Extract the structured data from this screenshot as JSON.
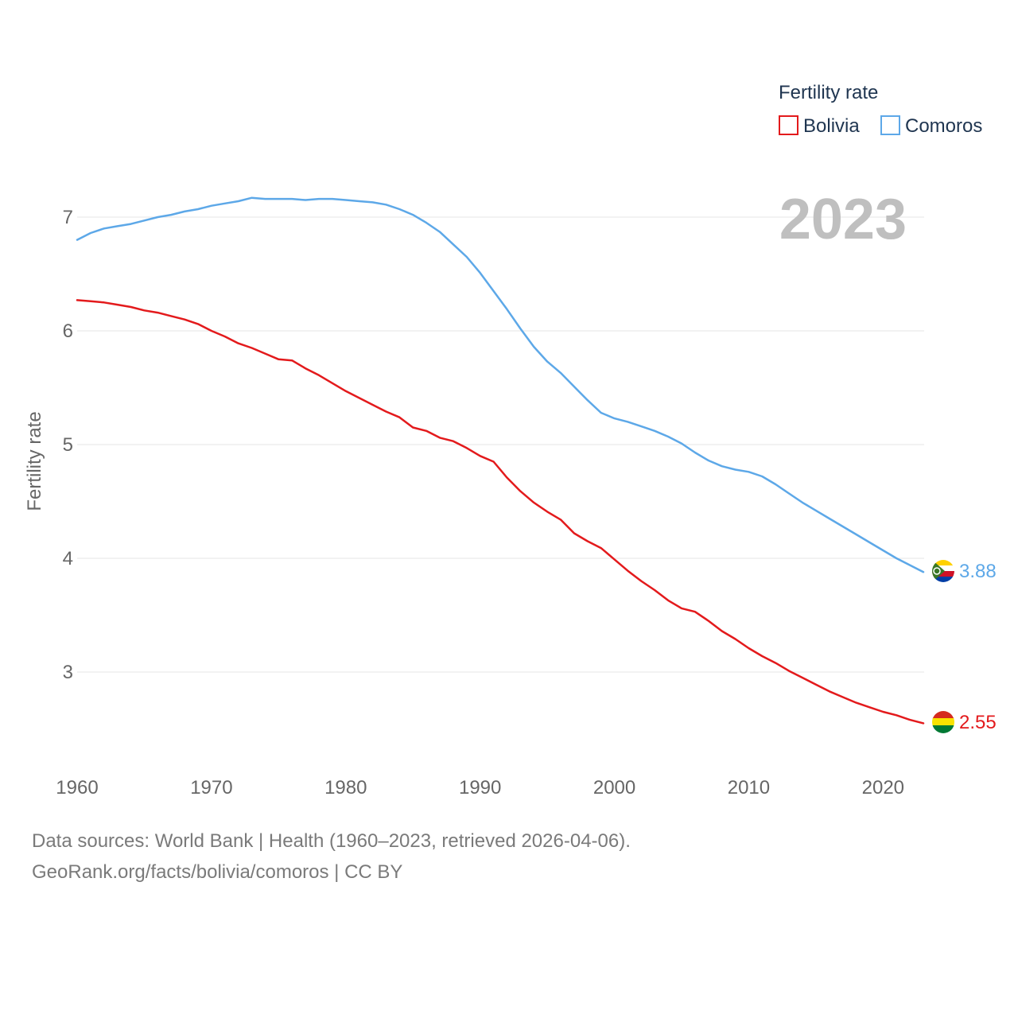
{
  "chart_data": {
    "type": "line",
    "title": "",
    "xlabel": "",
    "ylabel": "Fertility rate",
    "legend_title": "Fertility rate",
    "legend_position": "top-right",
    "year_label": "2023",
    "xlim": [
      1960,
      2023
    ],
    "ylim": [
      2.4,
      7.3
    ],
    "x_ticks": [
      1960,
      1970,
      1980,
      1990,
      2000,
      2010,
      2020
    ],
    "y_ticks": [
      3,
      4,
      5,
      6,
      7
    ],
    "x": [
      1960,
      1961,
      1962,
      1963,
      1964,
      1965,
      1966,
      1967,
      1968,
      1969,
      1970,
      1971,
      1972,
      1973,
      1974,
      1975,
      1976,
      1977,
      1978,
      1979,
      1980,
      1981,
      1982,
      1983,
      1984,
      1985,
      1986,
      1987,
      1988,
      1989,
      1990,
      1991,
      1992,
      1993,
      1994,
      1995,
      1996,
      1997,
      1998,
      1999,
      2000,
      2001,
      2002,
      2003,
      2004,
      2005,
      2006,
      2007,
      2008,
      2009,
      2010,
      2011,
      2012,
      2013,
      2014,
      2015,
      2016,
      2017,
      2018,
      2019,
      2020,
      2021,
      2022,
      2023
    ],
    "series": [
      {
        "name": "Bolivia",
        "color": "#e31a1c",
        "end_label": "2.55",
        "values": [
          6.27,
          6.26,
          6.25,
          6.23,
          6.21,
          6.18,
          6.16,
          6.13,
          6.1,
          6.06,
          6.0,
          5.95,
          5.89,
          5.85,
          5.8,
          5.75,
          5.74,
          5.67,
          5.61,
          5.54,
          5.47,
          5.41,
          5.35,
          5.29,
          5.24,
          5.15,
          5.12,
          5.06,
          5.03,
          4.97,
          4.9,
          4.85,
          4.71,
          4.59,
          4.49,
          4.41,
          4.34,
          4.22,
          4.15,
          4.09,
          3.99,
          3.89,
          3.8,
          3.72,
          3.63,
          3.56,
          3.53,
          3.45,
          3.36,
          3.29,
          3.21,
          3.14,
          3.08,
          3.01,
          2.95,
          2.89,
          2.83,
          2.78,
          2.73,
          2.69,
          2.65,
          2.62,
          2.58,
          2.55
        ]
      },
      {
        "name": "Comoros",
        "color": "#5da8e8",
        "end_label": "3.88",
        "values": [
          6.8,
          6.86,
          6.9,
          6.92,
          6.94,
          6.97,
          7.0,
          7.02,
          7.05,
          7.07,
          7.1,
          7.12,
          7.14,
          7.17,
          7.16,
          7.16,
          7.16,
          7.15,
          7.16,
          7.16,
          7.15,
          7.14,
          7.13,
          7.11,
          7.07,
          7.02,
          6.95,
          6.87,
          6.76,
          6.65,
          6.51,
          6.35,
          6.19,
          6.02,
          5.86,
          5.73,
          5.63,
          5.51,
          5.39,
          5.28,
          5.23,
          5.2,
          5.16,
          5.12,
          5.07,
          5.01,
          4.93,
          4.86,
          4.81,
          4.78,
          4.76,
          4.72,
          4.65,
          4.57,
          4.49,
          4.42,
          4.35,
          4.28,
          4.21,
          4.14,
          4.07,
          4.0,
          3.94,
          3.88
        ]
      }
    ]
  },
  "footer": {
    "source": "Data sources: World Bank | Health (1960–2023, retrieved 2026-04-06).",
    "credit": "GeoRank.org/facts/bolivia/comoros | CC BY"
  }
}
